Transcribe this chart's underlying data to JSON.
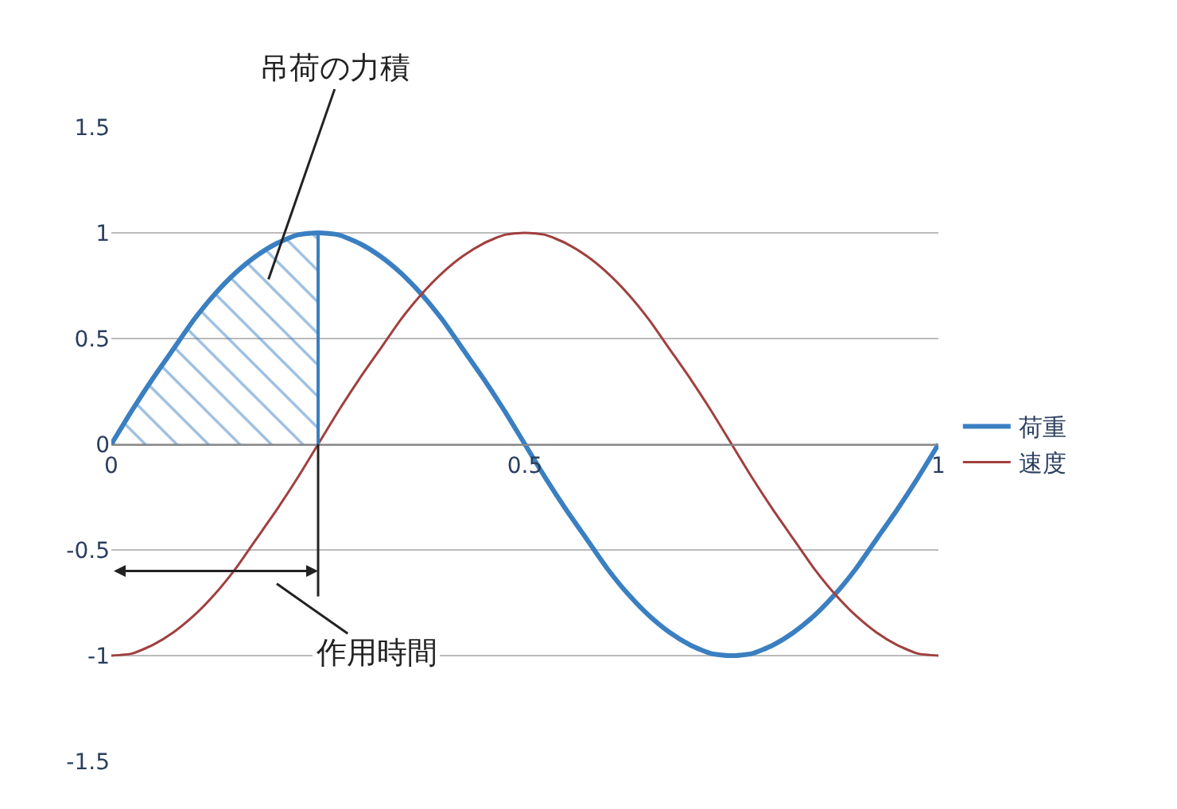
{
  "chart_data": {
    "type": "line",
    "x": [
      0,
      0.025,
      0.05,
      0.075,
      0.1,
      0.125,
      0.15,
      0.175,
      0.2,
      0.225,
      0.25,
      0.275,
      0.3,
      0.325,
      0.35,
      0.375,
      0.4,
      0.425,
      0.45,
      0.475,
      0.5,
      0.525,
      0.55,
      0.575,
      0.6,
      0.625,
      0.65,
      0.675,
      0.7,
      0.725,
      0.75,
      0.775,
      0.8,
      0.825,
      0.85,
      0.875,
      0.9,
      0.925,
      0.95,
      0.975,
      1
    ],
    "series": [
      {
        "name": "荷重",
        "color": "#3a7fc1",
        "values": [
          0,
          0.16,
          0.31,
          0.45,
          0.59,
          0.71,
          0.81,
          0.89,
          0.95,
          0.99,
          1,
          0.99,
          0.95,
          0.89,
          0.81,
          0.71,
          0.59,
          0.45,
          0.31,
          0.16,
          0,
          -0.16,
          -0.31,
          -0.45,
          -0.59,
          -0.71,
          -0.81,
          -0.89,
          -0.95,
          -0.99,
          -1,
          -0.99,
          -0.95,
          -0.89,
          -0.81,
          -0.71,
          -0.59,
          -0.45,
          -0.31,
          -0.16,
          0
        ]
      },
      {
        "name": "速度",
        "color": "#a0403f",
        "values": [
          -1,
          -0.99,
          -0.95,
          -0.89,
          -0.81,
          -0.71,
          -0.59,
          -0.45,
          -0.31,
          -0.16,
          0,
          0.16,
          0.31,
          0.45,
          0.59,
          0.71,
          0.81,
          0.89,
          0.95,
          0.99,
          1,
          0.99,
          0.95,
          0.89,
          0.81,
          0.71,
          0.59,
          0.45,
          0.31,
          0.16,
          0,
          -0.16,
          -0.31,
          -0.45,
          -0.59,
          -0.71,
          -0.81,
          -0.89,
          -0.95,
          -0.99,
          -1
        ]
      },
      {
        "type": "area",
        "color": "#3a7fc1",
        "x": [
          0,
          0.025,
          0.05,
          0.075,
          0.1,
          0.125,
          0.15,
          0.175,
          0.2,
          0.225,
          0.25,
          0.25
        ],
        "values": [
          0,
          0.16,
          0.31,
          0.45,
          0.59,
          0.71,
          0.81,
          0.89,
          0.95,
          0.99,
          1,
          0
        ]
      }
    ],
    "annotations": [
      "吊荷の力積",
      "作用時間"
    ],
    "ref_lines": [
      {
        "axis": "x",
        "value": 0.25,
        "color": "#222222"
      }
    ],
    "xlim": [
      0,
      1
    ],
    "xticks": [
      0,
      0.5,
      1
    ],
    "ylim": [
      -1.5,
      1.5
    ],
    "yticks": [
      -1.5,
      -1,
      -0.5,
      0,
      0.5,
      1,
      1.5
    ],
    "grid": "y",
    "legend": "right",
    "marker": "none"
  }
}
